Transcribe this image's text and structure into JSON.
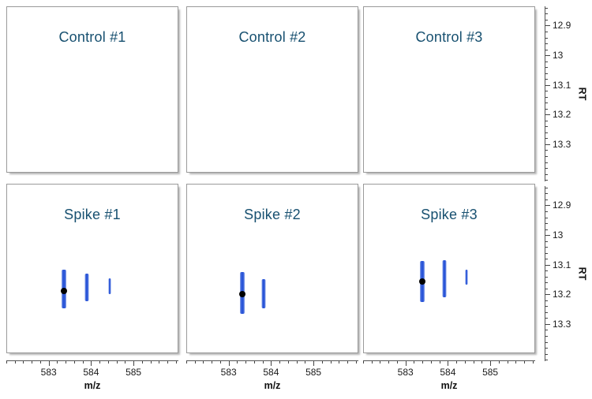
{
  "chart_data": {
    "type": "scatter",
    "layout": "2x3 small multiples (replicate panes), vertical range marks of RT vs m/z",
    "xlabel": "m/z",
    "ylabel": "RT",
    "x_axis": {
      "majors": [
        583,
        584,
        585
      ],
      "minor_step": 0.2,
      "view": [
        582.0,
        586.06
      ]
    },
    "y_axis": {
      "majors": [
        12.9,
        13,
        13.1,
        13.2,
        13.3
      ],
      "minor_step": 0.02,
      "inverted": true,
      "view_axis": [
        12.835,
        13.425
      ],
      "view_panel": [
        12.82,
        13.4
      ]
    },
    "colors": {
      "title": "#175070",
      "mark_core": "#2a55d8",
      "mark_halo": "#7d9ae6",
      "apex_dot": "#000000",
      "panel_border": "#9a9a9a",
      "axis_line": "#555555"
    },
    "panels": [
      {
        "title": "Control #1",
        "row": 0,
        "col": 0,
        "marks": [],
        "dot": null
      },
      {
        "title": "Control #2",
        "row": 0,
        "col": 1,
        "marks": [],
        "dot": null
      },
      {
        "title": "Control #3",
        "row": 0,
        "col": 2,
        "marks": [],
        "dot": null
      },
      {
        "title": "Spike #1",
        "row": 1,
        "col": 0,
        "marks": [
          {
            "mz": 583.36,
            "rt_start": 13.113,
            "rt_end": 13.247,
            "size": 3
          },
          {
            "mz": 583.9,
            "rt_start": 13.127,
            "rt_end": 13.222,
            "size": 2
          },
          {
            "mz": 584.44,
            "rt_start": 13.143,
            "rt_end": 13.199,
            "size": 1
          }
        ],
        "dot": {
          "mz": 583.36,
          "rt": 13.187
        }
      },
      {
        "title": "Spike #2",
        "row": 1,
        "col": 1,
        "marks": [
          {
            "mz": 583.31,
            "rt_start": 13.121,
            "rt_end": 13.266,
            "size": 3
          },
          {
            "mz": 583.83,
            "rt_start": 13.148,
            "rt_end": 13.247,
            "size": 2
          }
        ],
        "dot": {
          "mz": 583.31,
          "rt": 13.199
        }
      },
      {
        "title": "Spike #3",
        "row": 1,
        "col": 2,
        "marks": [
          {
            "mz": 583.4,
            "rt_start": 13.084,
            "rt_end": 13.225,
            "size": 3
          },
          {
            "mz": 583.91,
            "rt_start": 13.081,
            "rt_end": 13.209,
            "size": 2
          },
          {
            "mz": 584.44,
            "rt_start": 13.113,
            "rt_end": 13.167,
            "size": 1
          }
        ],
        "dot": {
          "mz": 583.4,
          "rt": 13.156
        }
      }
    ]
  }
}
